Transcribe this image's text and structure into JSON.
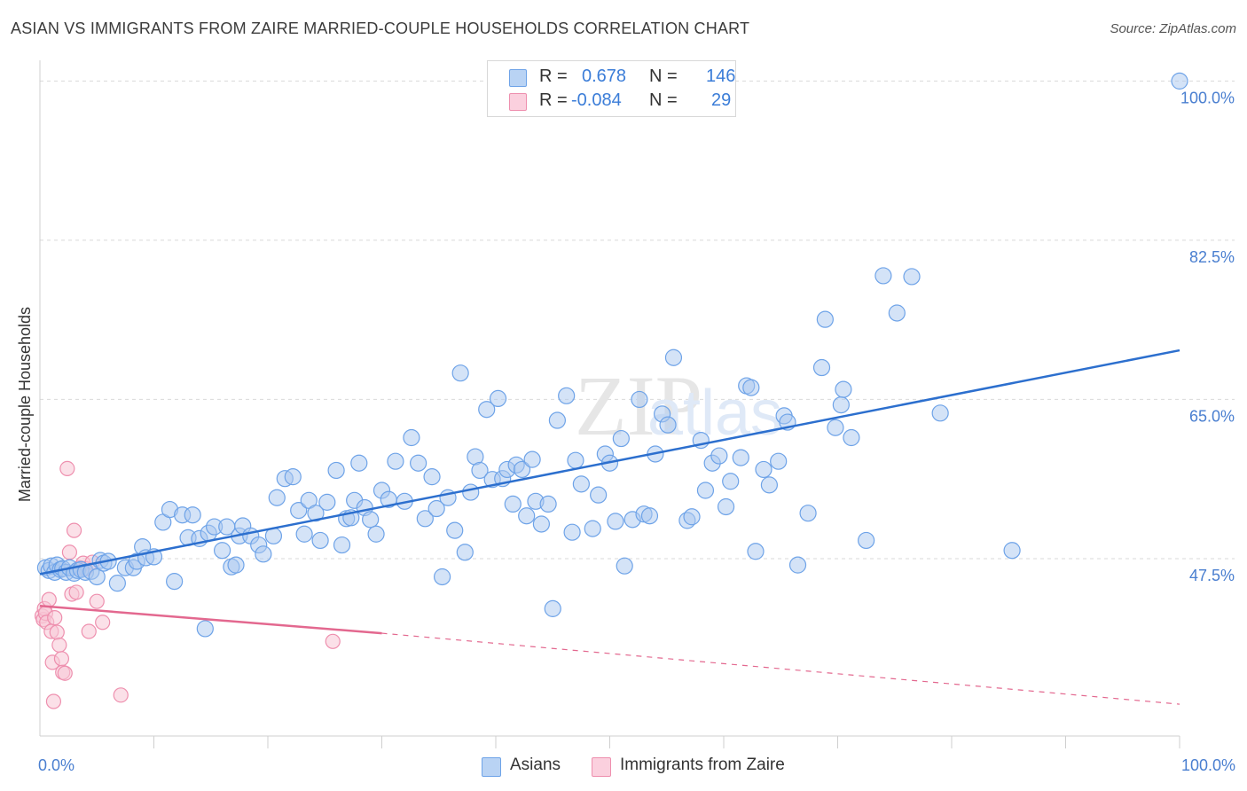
{
  "header": {
    "title": "ASIAN VS IMMIGRANTS FROM ZAIRE MARRIED-COUPLE HOUSEHOLDS CORRELATION CHART",
    "source": "Source: ZipAtlas.com"
  },
  "legend": {
    "r_label": "R =",
    "n_label": "N =",
    "rows": [
      {
        "r": "0.678",
        "n": "146",
        "color": "#6ea3e8"
      },
      {
        "r": "-0.084",
        "n": "29",
        "color": "#f4a3bd"
      }
    ]
  },
  "bottom_legend": [
    {
      "label": "Asians",
      "color": "#6ea3e8"
    },
    {
      "label": "Immigrants from Zaire",
      "color": "#f4a3bd"
    }
  ],
  "colors": {
    "asian_fill": "#a9c8f0",
    "asian_stroke": "#6ea3e8",
    "asian_line": "#2c6fce",
    "zaire_fill": "#f8c6d6",
    "zaire_stroke": "#ee8fae",
    "zaire_line": "#e3688f",
    "axis_text": "#4a7fd0",
    "grid": "#d9d9d9"
  },
  "chart_data": {
    "type": "scatter",
    "title": "ASIAN VS IMMIGRANTS FROM ZAIRE MARRIED-COUPLE HOUSEHOLDS CORRELATION CHART",
    "xlabel": "",
    "ylabel": "Married-couple Households",
    "xlim": [
      0,
      100
    ],
    "ylim": [
      28,
      101.5
    ],
    "x_tick_labels": [
      "0.0%",
      "100.0%"
    ],
    "y_ticks": [
      47.5,
      65.0,
      82.5,
      100.0
    ],
    "y_tick_labels": [
      "47.5%",
      "65.0%",
      "82.5%",
      "100.0%"
    ],
    "watermark": "ZIPatlas",
    "series": [
      {
        "name": "Asians",
        "R": 0.678,
        "N": 146,
        "trend": {
          "x": [
            0,
            100
          ],
          "y": [
            45.8,
            70.4
          ]
        },
        "points": [
          [
            0.5,
            46.5
          ],
          [
            0.8,
            46.2
          ],
          [
            1.0,
            46.7
          ],
          [
            1.3,
            46.0
          ],
          [
            1.5,
            46.8
          ],
          [
            1.8,
            46.3
          ],
          [
            2.0,
            46.4
          ],
          [
            2.3,
            46.0
          ],
          [
            2.6,
            46.5
          ],
          [
            3.0,
            45.9
          ],
          [
            3.3,
            46.2
          ],
          [
            3.6,
            46.3
          ],
          [
            4.0,
            46.0
          ],
          [
            4.5,
            46.1
          ],
          [
            5.0,
            45.5
          ],
          [
            5.3,
            47.3
          ],
          [
            5.6,
            47.0
          ],
          [
            6.0,
            47.2
          ],
          [
            6.8,
            44.8
          ],
          [
            7.5,
            46.5
          ],
          [
            8.2,
            46.5
          ],
          [
            8.5,
            47.2
          ],
          [
            9.0,
            48.8
          ],
          [
            9.3,
            47.6
          ],
          [
            10.0,
            47.7
          ],
          [
            10.8,
            51.5
          ],
          [
            11.4,
            52.9
          ],
          [
            11.8,
            45.0
          ],
          [
            12.5,
            52.3
          ],
          [
            13.0,
            49.8
          ],
          [
            13.4,
            52.3
          ],
          [
            14.0,
            49.7
          ],
          [
            14.5,
            39.8
          ],
          [
            14.8,
            50.3
          ],
          [
            15.3,
            51.0
          ],
          [
            16.0,
            48.4
          ],
          [
            16.4,
            51.0
          ],
          [
            16.8,
            46.6
          ],
          [
            17.2,
            46.8
          ],
          [
            17.5,
            50.0
          ],
          [
            17.8,
            51.1
          ],
          [
            18.5,
            50.0
          ],
          [
            19.2,
            49.0
          ],
          [
            19.6,
            48.0
          ],
          [
            20.5,
            50.0
          ],
          [
            20.8,
            54.2
          ],
          [
            21.5,
            56.3
          ],
          [
            22.2,
            56.5
          ],
          [
            22.7,
            52.8
          ],
          [
            23.2,
            50.2
          ],
          [
            23.6,
            53.9
          ],
          [
            24.2,
            52.5
          ],
          [
            24.6,
            49.5
          ],
          [
            25.2,
            53.7
          ],
          [
            26.0,
            57.2
          ],
          [
            26.5,
            49.0
          ],
          [
            26.9,
            51.9
          ],
          [
            27.3,
            52.0
          ],
          [
            27.6,
            53.9
          ],
          [
            28.0,
            58.0
          ],
          [
            28.5,
            53.1
          ],
          [
            29.0,
            51.8
          ],
          [
            29.5,
            50.2
          ],
          [
            30.0,
            55.0
          ],
          [
            30.6,
            54.0
          ],
          [
            31.2,
            58.2
          ],
          [
            32.0,
            53.8
          ],
          [
            32.6,
            60.8
          ],
          [
            33.2,
            58.0
          ],
          [
            33.8,
            51.9
          ],
          [
            34.4,
            56.5
          ],
          [
            34.8,
            53.0
          ],
          [
            35.3,
            45.5
          ],
          [
            35.8,
            54.2
          ],
          [
            36.4,
            50.6
          ],
          [
            36.9,
            67.9
          ],
          [
            37.3,
            48.2
          ],
          [
            37.8,
            54.8
          ],
          [
            38.2,
            58.7
          ],
          [
            38.6,
            57.2
          ],
          [
            39.2,
            63.9
          ],
          [
            39.7,
            56.2
          ],
          [
            40.2,
            65.1
          ],
          [
            40.6,
            56.3
          ],
          [
            41.0,
            57.3
          ],
          [
            41.5,
            53.5
          ],
          [
            41.8,
            57.8
          ],
          [
            42.3,
            57.3
          ],
          [
            42.7,
            52.2
          ],
          [
            43.2,
            58.4
          ],
          [
            43.5,
            53.8
          ],
          [
            44.0,
            51.3
          ],
          [
            44.6,
            53.5
          ],
          [
            45.0,
            42.0
          ],
          [
            45.4,
            62.7
          ],
          [
            46.2,
            65.4
          ],
          [
            46.7,
            50.4
          ],
          [
            47.0,
            58.3
          ],
          [
            47.5,
            55.7
          ],
          [
            48.5,
            50.8
          ],
          [
            49.0,
            54.5
          ],
          [
            49.6,
            59.0
          ],
          [
            50.0,
            58.0
          ],
          [
            50.5,
            51.6
          ],
          [
            51.0,
            60.7
          ],
          [
            51.3,
            46.7
          ],
          [
            52.0,
            51.8
          ],
          [
            52.6,
            65.0
          ],
          [
            53.0,
            52.4
          ],
          [
            53.5,
            52.2
          ],
          [
            54.0,
            59.0
          ],
          [
            54.6,
            63.4
          ],
          [
            55.1,
            62.2
          ],
          [
            55.6,
            69.6
          ],
          [
            56.8,
            51.7
          ],
          [
            57.2,
            52.1
          ],
          [
            58.0,
            60.5
          ],
          [
            58.4,
            55.0
          ],
          [
            59.0,
            58.0
          ],
          [
            59.6,
            58.8
          ],
          [
            60.2,
            53.2
          ],
          [
            60.6,
            56.0
          ],
          [
            61.5,
            58.6
          ],
          [
            62.0,
            66.5
          ],
          [
            62.4,
            66.3
          ],
          [
            62.8,
            48.3
          ],
          [
            63.5,
            57.3
          ],
          [
            64.0,
            55.6
          ],
          [
            64.8,
            58.2
          ],
          [
            65.3,
            63.2
          ],
          [
            65.6,
            62.5
          ],
          [
            66.5,
            46.8
          ],
          [
            67.4,
            52.5
          ],
          [
            68.6,
            68.5
          ],
          [
            68.9,
            73.8
          ],
          [
            69.8,
            61.9
          ],
          [
            70.3,
            64.4
          ],
          [
            70.5,
            66.1
          ],
          [
            71.2,
            60.8
          ],
          [
            72.5,
            49.5
          ],
          [
            74.0,
            78.6
          ],
          [
            75.2,
            74.5
          ],
          [
            76.5,
            78.5
          ],
          [
            79.0,
            63.5
          ],
          [
            85.3,
            48.4
          ],
          [
            100.0,
            100.0
          ]
        ]
      },
      {
        "name": "Immigrants from Zaire",
        "R": -0.084,
        "N": 29,
        "trend": {
          "x": [
            0,
            30
          ],
          "y": [
            42.3,
            39.3
          ]
        },
        "trend_extended": {
          "x": [
            30,
            100
          ],
          "y": [
            39.3,
            31.5
          ]
        },
        "points": [
          [
            0.2,
            41.2
          ],
          [
            0.3,
            40.8
          ],
          [
            0.4,
            42.0
          ],
          [
            0.5,
            41.5
          ],
          [
            0.6,
            40.5
          ],
          [
            0.8,
            43.0
          ],
          [
            1.0,
            39.5
          ],
          [
            1.1,
            36.1
          ],
          [
            1.2,
            31.8
          ],
          [
            1.3,
            41.0
          ],
          [
            1.5,
            39.4
          ],
          [
            1.7,
            38.0
          ],
          [
            1.9,
            36.5
          ],
          [
            2.0,
            35.0
          ],
          [
            2.2,
            34.9
          ],
          [
            2.4,
            57.4
          ],
          [
            2.6,
            48.2
          ],
          [
            2.8,
            43.6
          ],
          [
            3.0,
            50.6
          ],
          [
            3.2,
            43.8
          ],
          [
            3.5,
            46.5
          ],
          [
            3.8,
            47.0
          ],
          [
            4.0,
            46.4
          ],
          [
            4.3,
            39.5
          ],
          [
            4.6,
            47.1
          ],
          [
            5.0,
            42.8
          ],
          [
            5.5,
            40.5
          ],
          [
            7.1,
            32.5
          ],
          [
            25.7,
            38.4
          ]
        ]
      }
    ]
  }
}
